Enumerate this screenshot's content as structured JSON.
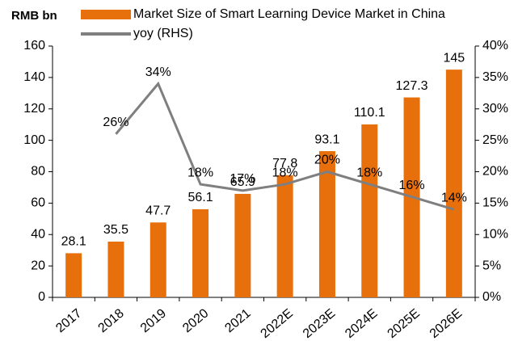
{
  "chart_data": {
    "type": "bar_line",
    "y_axis_label": "RMB bn",
    "categories": [
      "2017",
      "2018",
      "2019",
      "2020",
      "2021",
      "2022E",
      "2023E",
      "2024E",
      "2025E",
      "2026E"
    ],
    "series": [
      {
        "name": "Market Size of Smart Learning Device Market in China",
        "type": "bar",
        "color": "#e8700c",
        "values": [
          28.1,
          35.5,
          47.7,
          56.1,
          65.9,
          77.8,
          93.1,
          110.1,
          127.3,
          145
        ]
      },
      {
        "name": "yoy (RHS)",
        "type": "line",
        "axis": "y2",
        "color": "#7f7f7f",
        "values": [
          null,
          26,
          34,
          18,
          17,
          18,
          20,
          18,
          16,
          14
        ],
        "value_labels": [
          null,
          "26%",
          "34%",
          "18%",
          "17%",
          "18%",
          "20%",
          "18%",
          "16%",
          "14%"
        ]
      }
    ],
    "ylim": [
      0,
      160
    ],
    "yticks": [
      0,
      20,
      40,
      60,
      80,
      100,
      120,
      140,
      160
    ],
    "y2lim": [
      0,
      40
    ],
    "y2ticks": [
      {
        "value": 0,
        "label": "0%"
      },
      {
        "value": 5,
        "label": "5%"
      },
      {
        "value": 10,
        "label": "10%"
      },
      {
        "value": 15,
        "label": "15%"
      },
      {
        "value": 20,
        "label": "20%"
      },
      {
        "value": 25,
        "label": "25%"
      },
      {
        "value": 30,
        "label": "30%"
      },
      {
        "value": 35,
        "label": "35%"
      },
      {
        "value": 40,
        "label": "40%"
      }
    ],
    "grid": false
  }
}
